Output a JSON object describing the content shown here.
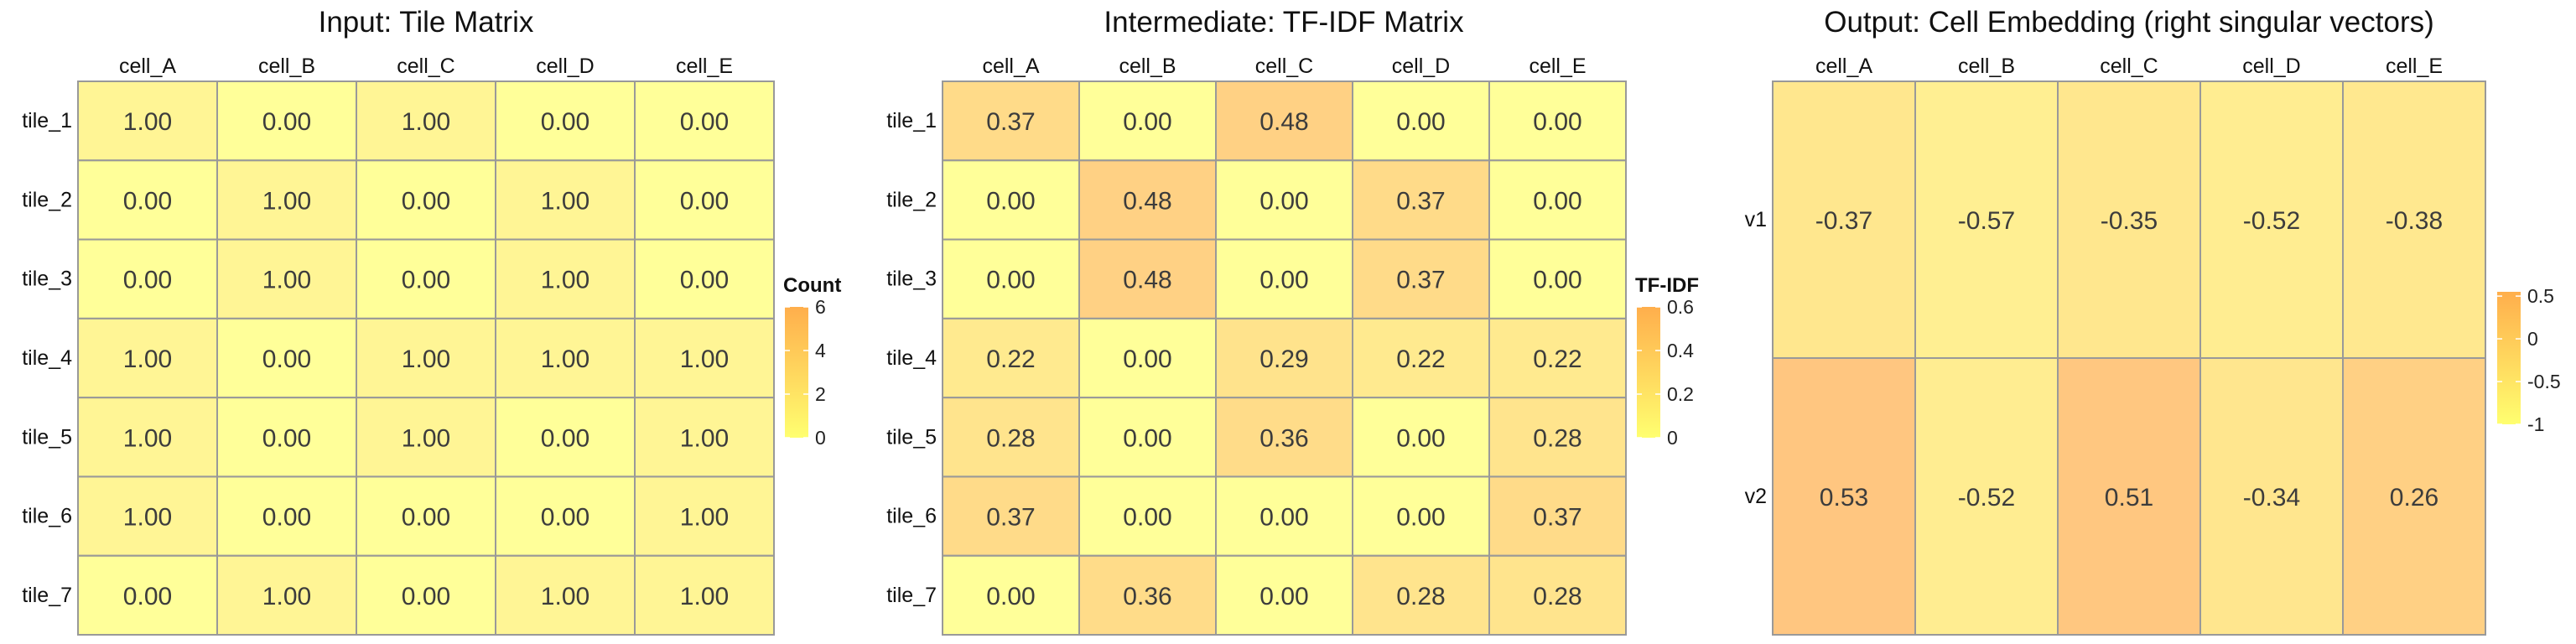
{
  "chart_data": [
    {
      "type": "heatmap",
      "title": "Input: Tile Matrix",
      "columns": [
        "cell_A",
        "cell_B",
        "cell_C",
        "cell_D",
        "cell_E"
      ],
      "rows": [
        "tile_1",
        "tile_2",
        "tile_3",
        "tile_4",
        "tile_5",
        "tile_6",
        "tile_7"
      ],
      "values": [
        [
          1.0,
          0.0,
          1.0,
          0.0,
          0.0
        ],
        [
          0.0,
          1.0,
          0.0,
          1.0,
          0.0
        ],
        [
          0.0,
          1.0,
          0.0,
          1.0,
          0.0
        ],
        [
          1.0,
          0.0,
          1.0,
          1.0,
          1.0
        ],
        [
          1.0,
          0.0,
          1.0,
          0.0,
          1.0
        ],
        [
          1.0,
          0.0,
          0.0,
          0.0,
          1.0
        ],
        [
          0.0,
          1.0,
          0.0,
          1.0,
          1.0
        ]
      ],
      "legend": {
        "title": "Count",
        "breaks": [
          0,
          2,
          4,
          6
        ],
        "labels": [
          "0",
          "2",
          "4",
          "6"
        ],
        "range": [
          0,
          6
        ],
        "colors": [
          "#ffff33",
          "#ff8c00"
        ]
      }
    },
    {
      "type": "heatmap",
      "title": "Intermediate: TF-IDF Matrix",
      "columns": [
        "cell_A",
        "cell_B",
        "cell_C",
        "cell_D",
        "cell_E"
      ],
      "rows": [
        "tile_1",
        "tile_2",
        "tile_3",
        "tile_4",
        "tile_5",
        "tile_6",
        "tile_7"
      ],
      "values": [
        [
          0.37,
          0.0,
          0.48,
          0.0,
          0.0
        ],
        [
          0.0,
          0.48,
          0.0,
          0.37,
          0.0
        ],
        [
          0.0,
          0.48,
          0.0,
          0.37,
          0.0
        ],
        [
          0.22,
          0.0,
          0.29,
          0.22,
          0.22
        ],
        [
          0.28,
          0.0,
          0.36,
          0.0,
          0.28
        ],
        [
          0.37,
          0.0,
          0.0,
          0.0,
          0.37
        ],
        [
          0.0,
          0.36,
          0.0,
          0.28,
          0.28
        ]
      ],
      "legend": {
        "title": "TF-IDF",
        "breaks": [
          0,
          0.2,
          0.4,
          0.6
        ],
        "labels": [
          "0",
          "0.2",
          "0.4",
          "0.6"
        ],
        "range": [
          0,
          0.6
        ],
        "colors": [
          "#ffff33",
          "#ff8c00"
        ]
      }
    },
    {
      "type": "heatmap",
      "title": "Output: Cell Embedding (right singular vectors)",
      "columns": [
        "cell_A",
        "cell_B",
        "cell_C",
        "cell_D",
        "cell_E"
      ],
      "rows": [
        "v1",
        "v2"
      ],
      "values": [
        [
          -0.37,
          -0.57,
          -0.35,
          -0.52,
          -0.38
        ],
        [
          0.53,
          -0.52,
          0.51,
          -0.34,
          0.26
        ]
      ],
      "legend": {
        "title": "",
        "breaks": [
          -1,
          -0.5,
          0,
          0.5
        ],
        "labels": [
          "-1",
          "-0.5",
          "0",
          "0.5"
        ],
        "range": [
          -1,
          0.55
        ],
        "colors": [
          "#ffff33",
          "#ff8c00"
        ]
      }
    }
  ],
  "style": {
    "tile_border": "#999999",
    "low_color": "#ffff33",
    "high_color": "#ff8c00",
    "tile_alpha": 0.5
  }
}
